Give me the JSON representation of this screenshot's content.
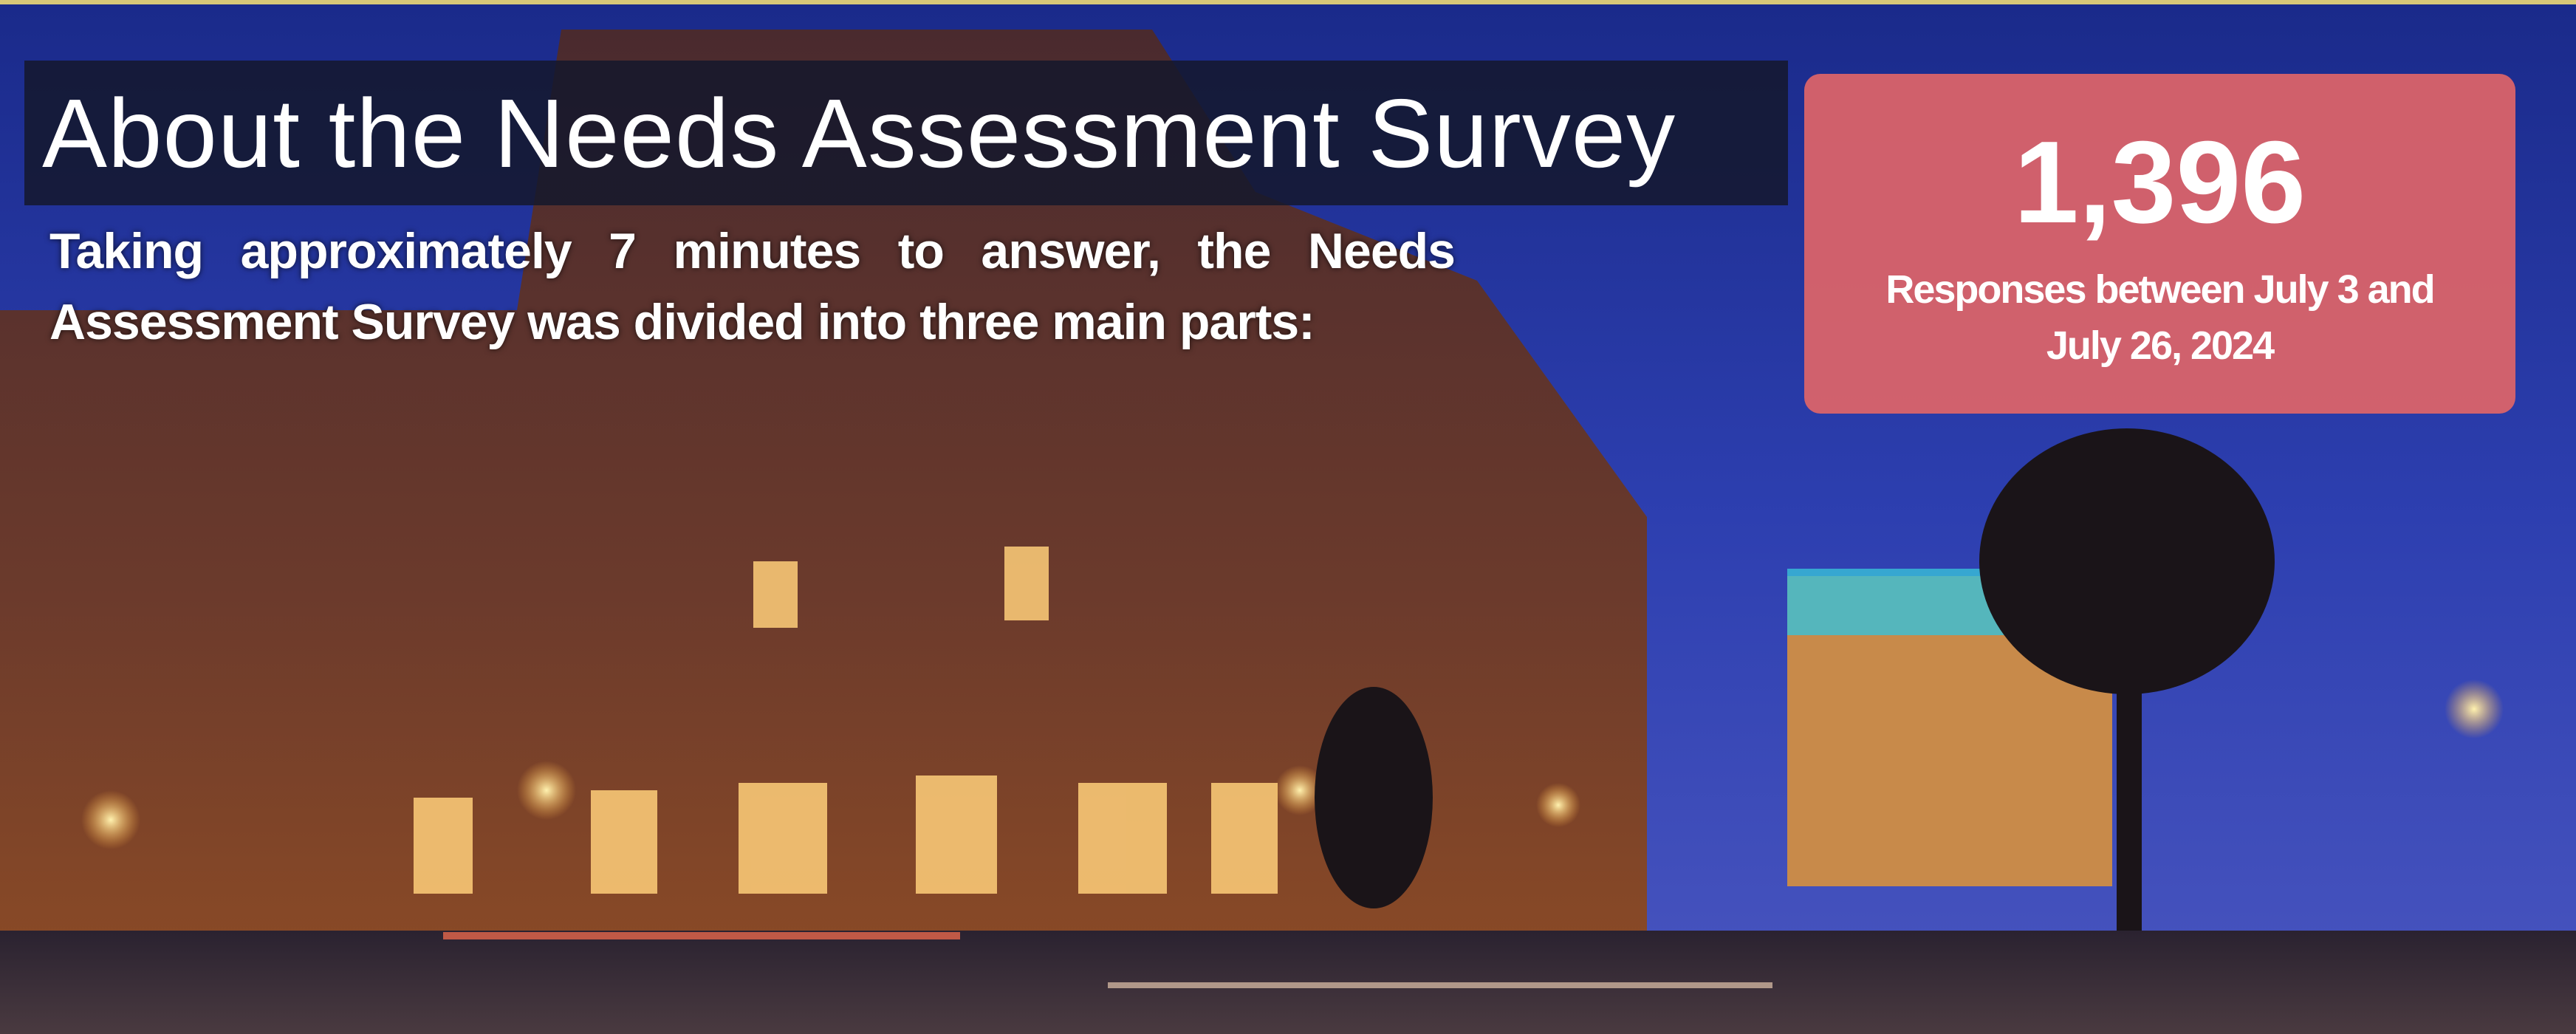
{
  "title": "About the Needs Assessment Survey",
  "body": "Taking approximately 7 minutes to answer, the Needs Assessment Survey was divided into three main parts:",
  "stat": {
    "number": "1,396",
    "caption": "Responses between July 3 and July 26, 2024"
  }
}
